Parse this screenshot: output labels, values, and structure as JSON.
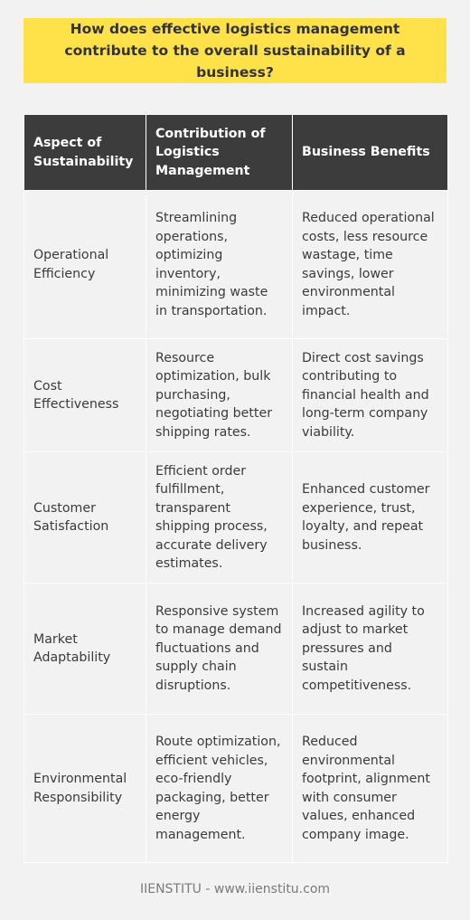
{
  "question": "How does effective logistics management contribute to the overall sustainability of a business?",
  "table": {
    "headers": [
      "Aspect of Sustainability",
      "Contribution of Logistics Management",
      "Business Benefits"
    ],
    "rows": [
      [
        "Operational Efficiency",
        "Streamlining operations, optimizing inventory, minimizing waste in transportation.",
        "Reduced operational costs, less resource wastage, time savings, lower environmental impact."
      ],
      [
        "Cost Effectiveness",
        "Resource optimization, bulk purchasing, negotiating better shipping rates.",
        "Direct cost savings contributing to financial health and long-term company viability."
      ],
      [
        "Customer Satisfaction",
        "Efficient order fulfillment, transparent shipping process, accurate delivery estimates.",
        "Enhanced customer experience, trust, loyalty, and repeat business."
      ],
      [
        "Market Adaptability",
        "Responsive system to manage demand fluctuations and supply chain disruptions.",
        "Increased agility to adjust to market pressures and sustain competitiveness."
      ],
      [
        "Environmental Responsibility",
        "Route optimization, efficient vehicles, eco-friendly packaging, better energy management.",
        "Reduced environmental footprint, alignment with consumer values, enhanced company image."
      ]
    ]
  },
  "footer": "IIENSTITU - www.iienstitu.com"
}
